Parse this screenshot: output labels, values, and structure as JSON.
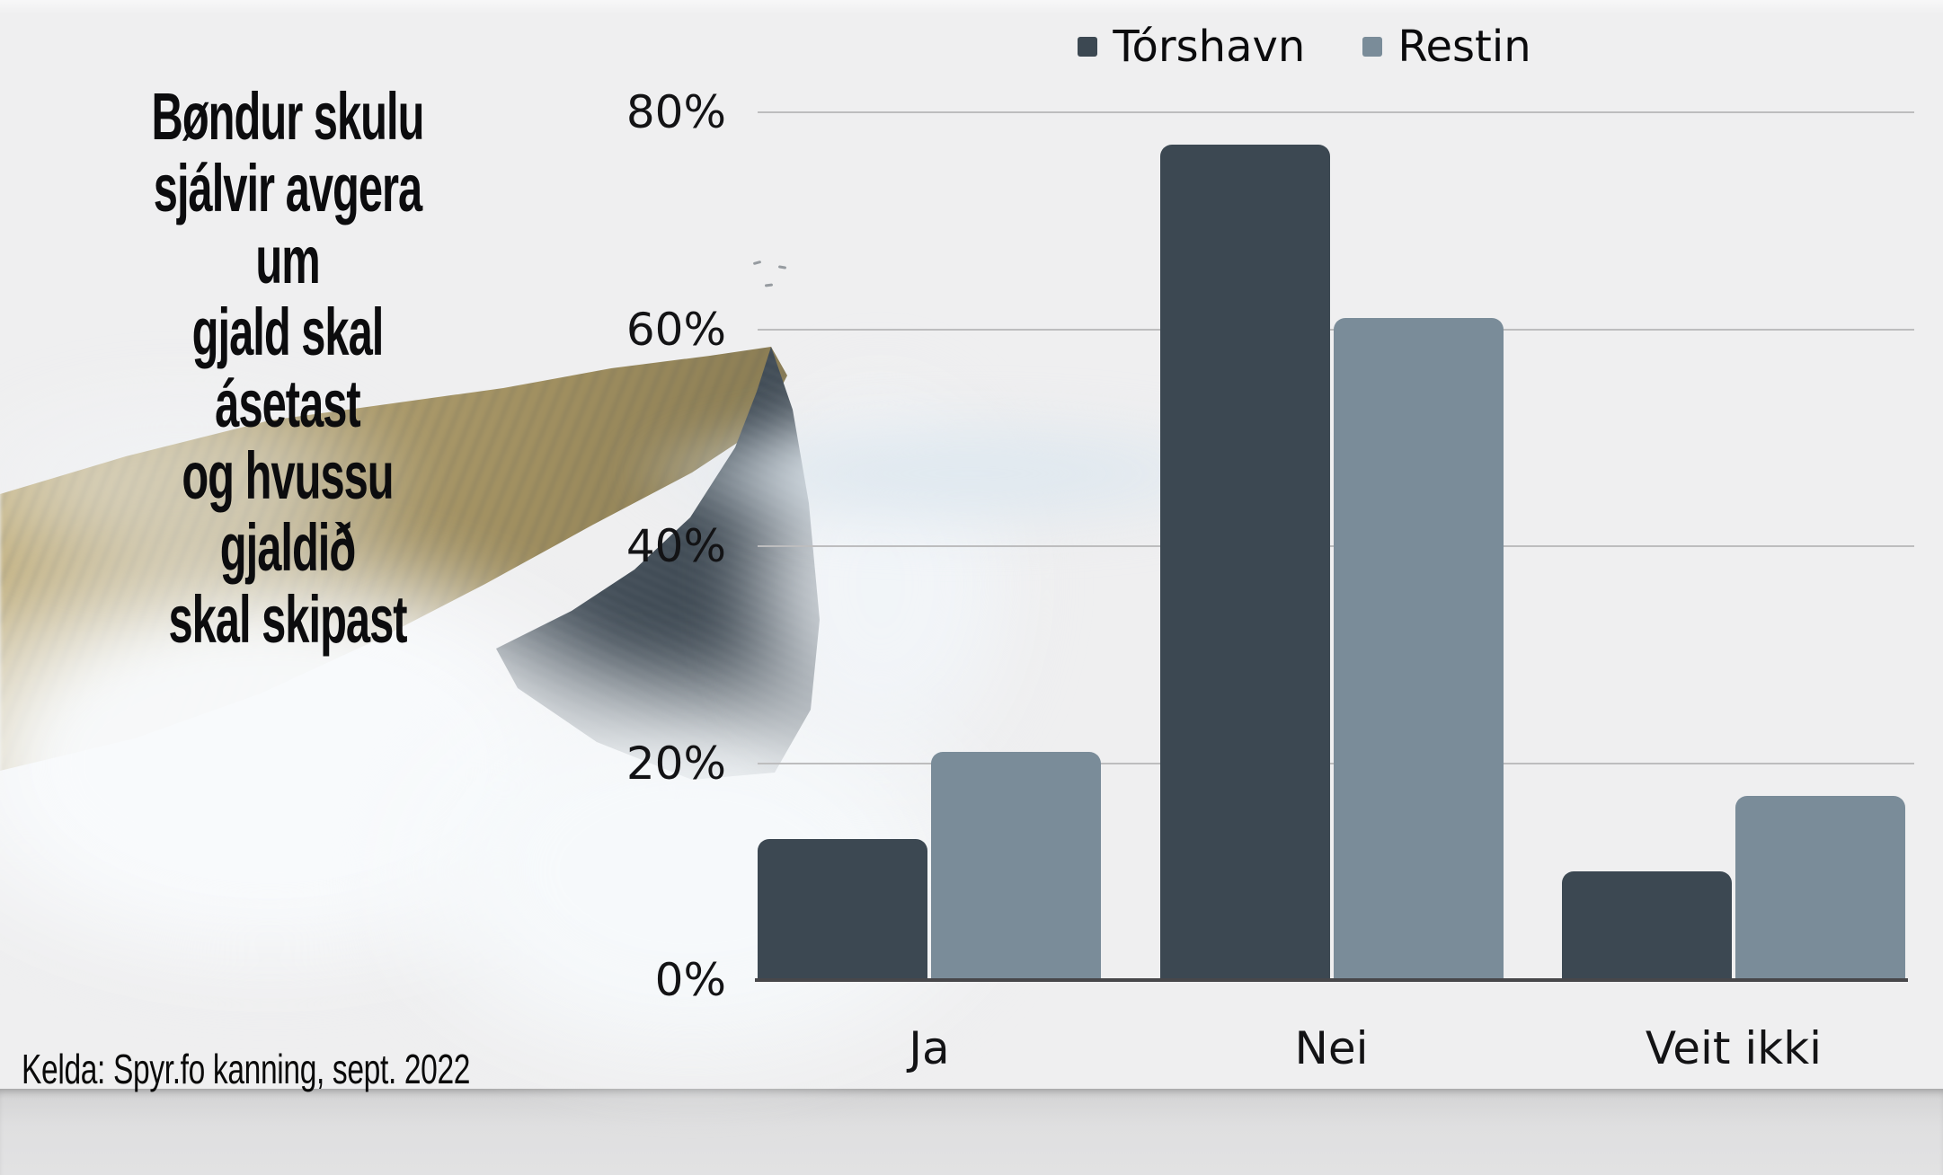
{
  "slide": {
    "title": "Bøndur skulu\nsjálvir avgera um\ngjald skal ásetast\nog hvussu gjaldið\nskal skipast",
    "source": "Kelda: Spyr.fo kanning, sept. 2022",
    "background_color": "#EFEFF0",
    "below_slide_color": "#DFDFE0"
  },
  "chart_data": {
    "type": "bar",
    "categories": [
      "Ja",
      "Nei",
      "Veit ikki"
    ],
    "series": [
      {
        "name": "Tórshavn",
        "color": "#3C4852",
        "values": [
          13,
          77,
          10
        ]
      },
      {
        "name": "Restin",
        "color": "#7A8C99",
        "values": [
          21,
          61,
          17
        ]
      }
    ],
    "title": "",
    "xlabel": "",
    "ylabel": "",
    "yticks": [
      0,
      20,
      40,
      60,
      80
    ],
    "ytick_labels": [
      "0%",
      "20%",
      "40%",
      "60%",
      "80%"
    ],
    "ylim": [
      0,
      80
    ],
    "grid": true,
    "legend_position": "top",
    "gridline_color": "#BDBDBE",
    "axis_line_color": "#47474A",
    "label_color": "#131315"
  }
}
